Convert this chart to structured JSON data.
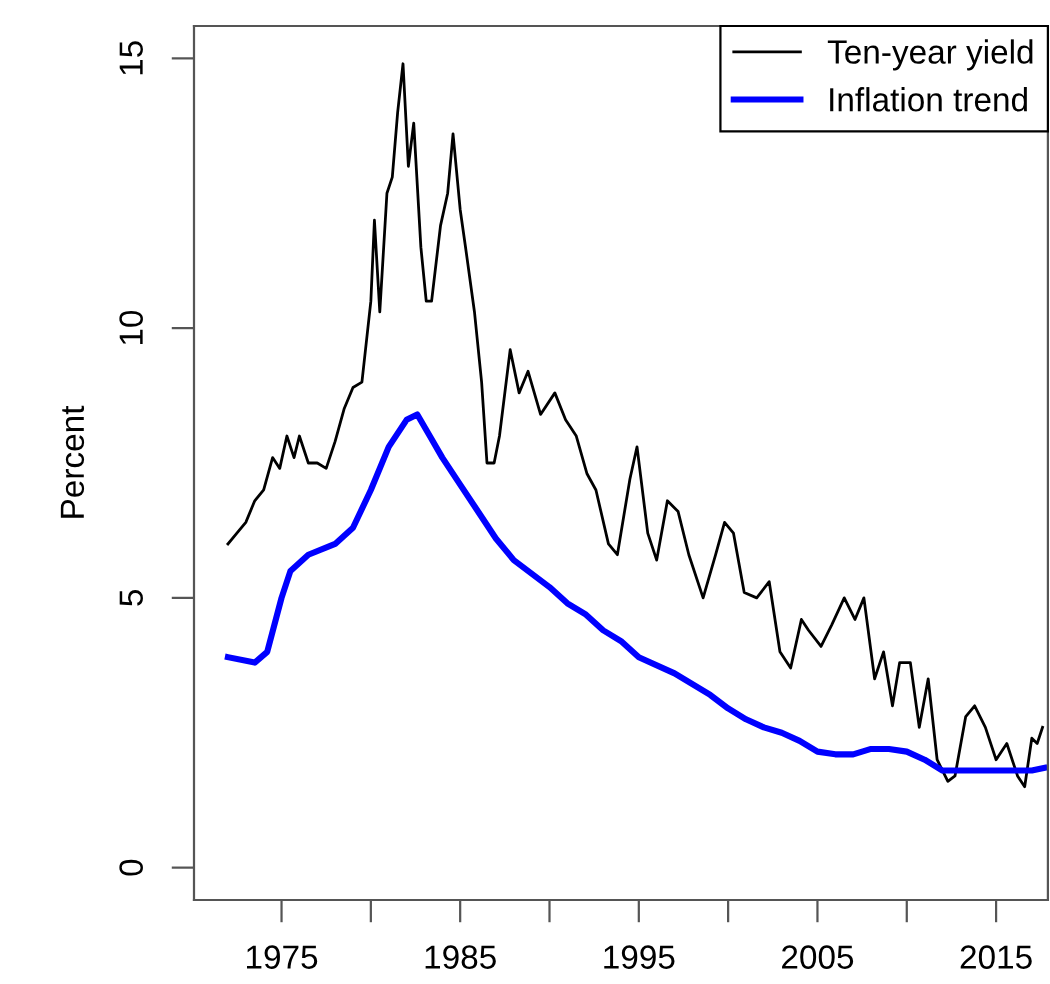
{
  "chart_data": {
    "type": "line",
    "ylabel": "Percent",
    "xlim": [
      1970.1,
      2017.9
    ],
    "ylim": [
      -0.6,
      15.6
    ],
    "xticks": [
      1975,
      {
        "value": 1980,
        "label": null
      },
      1985,
      {
        "value": 1990,
        "label": null
      },
      1995,
      {
        "value": 2000,
        "label": null
      },
      2005,
      {
        "value": 2010,
        "label": null
      },
      2015
    ],
    "yticks": [
      0,
      5,
      10,
      15
    ],
    "grid": false,
    "legend": "top right",
    "series": [
      {
        "name": "Ten-year yield",
        "color": "#000000",
        "line_style": "solid",
        "x": [
          1972.0,
          1972.5,
          1973.0,
          1973.5,
          1974.0,
          1974.5,
          1974.9,
          1975.3,
          1975.7,
          1976.0,
          1976.5,
          1977.0,
          1977.5,
          1978.0,
          1978.5,
          1979.0,
          1979.5,
          1980.0,
          1980.2,
          1980.5,
          1980.9,
          1981.2,
          1981.5,
          1981.8,
          1982.1,
          1982.4,
          1982.8,
          1983.1,
          1983.4,
          1983.9,
          1984.3,
          1984.6,
          1985.0,
          1985.3,
          1985.8,
          1986.2,
          1986.5,
          1986.9,
          1987.2,
          1987.8,
          1988.3,
          1988.8,
          1989.5,
          1990.3,
          1990.9,
          1991.5,
          1992.1,
          1992.6,
          1993.3,
          1993.8,
          1994.5,
          1994.9,
          1995.5,
          1996.0,
          1996.6,
          1997.2,
          1997.8,
          1998.6,
          1999.3,
          1999.8,
          2000.3,
          2000.9,
          2001.6,
          2002.3,
          2002.9,
          2003.5,
          2004.1,
          2004.5,
          2005.2,
          2005.8,
          2006.5,
          2007.1,
          2007.6,
          2008.2,
          2008.7,
          2009.2,
          2009.6,
          2010.2,
          2010.7,
          2011.2,
          2011.7,
          2012.3,
          2012.7,
          2013.3,
          2013.8,
          2014.4,
          2015.0,
          2015.6,
          2016.2,
          2016.6,
          2017.0,
          2017.3,
          2017.6
        ],
        "values": [
          6.0,
          6.2,
          6.4,
          6.8,
          7.0,
          7.6,
          7.4,
          8.0,
          7.6,
          8.0,
          7.5,
          7.5,
          7.4,
          7.9,
          8.5,
          8.9,
          9.0,
          10.5,
          12.0,
          10.3,
          12.5,
          12.8,
          14.0,
          14.9,
          13.0,
          13.8,
          11.5,
          10.5,
          10.5,
          11.9,
          12.5,
          13.6,
          12.2,
          11.5,
          10.3,
          9.0,
          7.5,
          7.5,
          8.0,
          9.6,
          8.8,
          9.2,
          8.4,
          8.8,
          8.3,
          8.0,
          7.3,
          7.0,
          6.0,
          5.8,
          7.2,
          7.8,
          6.2,
          5.7,
          6.8,
          6.6,
          5.8,
          5.0,
          5.8,
          6.4,
          6.2,
          5.1,
          5.0,
          5.3,
          4.0,
          3.7,
          4.6,
          4.4,
          4.1,
          4.5,
          5.0,
          4.6,
          5.0,
          3.5,
          4.0,
          3.0,
          3.8,
          3.8,
          2.6,
          3.5,
          2.0,
          1.6,
          1.7,
          2.8,
          3.0,
          2.6,
          2.0,
          2.3,
          1.7,
          1.5,
          2.4,
          2.3,
          2.6
        ]
      },
      {
        "name": "Inflation trend",
        "color": "#0000ff",
        "line_style": "solid",
        "x": [
          1972.0,
          1973.5,
          1974.2,
          1975.0,
          1975.5,
          1976.5,
          1978.0,
          1979.0,
          1980.0,
          1981.0,
          1982.0,
          1982.6,
          1983.3,
          1984.0,
          1985.0,
          1986.0,
          1987.0,
          1988.0,
          1990.0,
          1991.0,
          1992.0,
          1993.0,
          1994.0,
          1995.0,
          1997.0,
          1999.0,
          2000.0,
          2001.0,
          2002.0,
          2003.0,
          2004.0,
          2005.0,
          2006.0,
          2007.0,
          2008.0,
          2009.0,
          2010.0,
          2011.0,
          2012.0,
          2013.0,
          2014.0,
          2015.0,
          2016.0,
          2017.0,
          2017.7
        ],
        "values": [
          3.9,
          3.8,
          4.0,
          5.0,
          5.5,
          5.8,
          6.0,
          6.3,
          7.0,
          7.8,
          8.3,
          8.4,
          8.0,
          7.6,
          7.1,
          6.6,
          6.1,
          5.7,
          5.2,
          4.9,
          4.7,
          4.4,
          4.2,
          3.9,
          3.6,
          3.2,
          2.95,
          2.75,
          2.6,
          2.5,
          2.35,
          2.15,
          2.1,
          2.1,
          2.2,
          2.2,
          2.15,
          2.0,
          1.8,
          1.8,
          1.8,
          1.8,
          1.8,
          1.8,
          1.85
        ]
      }
    ]
  }
}
